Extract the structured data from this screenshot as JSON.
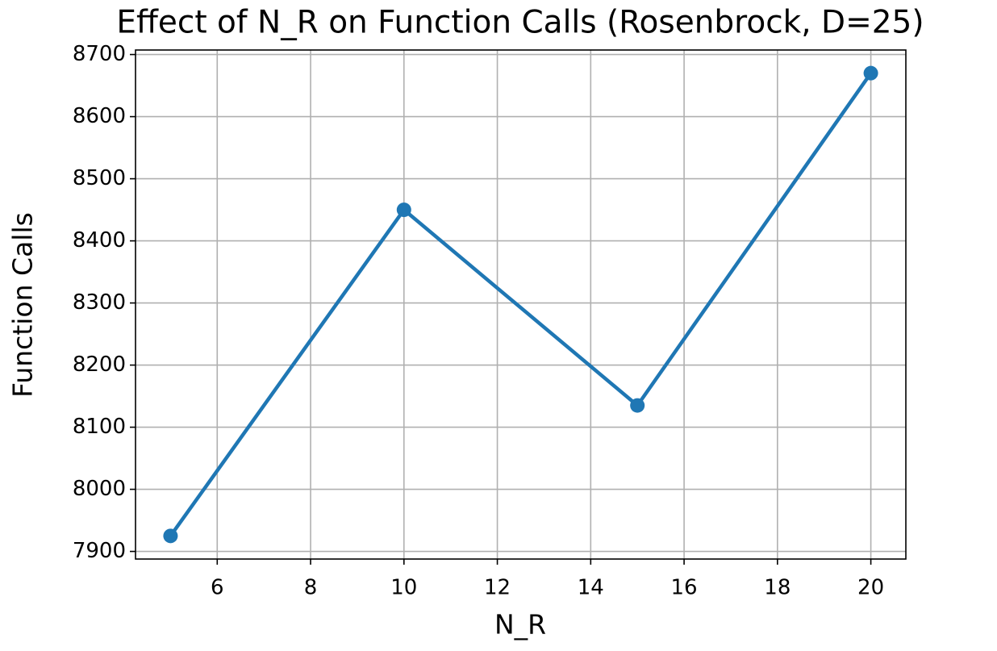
{
  "chart_data": {
    "type": "line",
    "title": "Effect of N_R on Function Calls (Rosenbrock, D=25)",
    "xlabel": "N_R",
    "ylabel": "Function Calls",
    "x": [
      5,
      10,
      15,
      20
    ],
    "series": [
      {
        "name": "Function Calls",
        "color": "#1f77b4",
        "values": [
          7925,
          8450,
          8135,
          8670
        ]
      }
    ],
    "xlim": [
      4.25,
      20.75
    ],
    "ylim": [
      7887.75,
      8707.25
    ],
    "xticks": [
      6,
      8,
      10,
      12,
      14,
      16,
      18,
      20
    ],
    "yticks": [
      7900,
      8000,
      8100,
      8200,
      8300,
      8400,
      8500,
      8600,
      8700
    ],
    "grid": true,
    "marker": "o"
  }
}
